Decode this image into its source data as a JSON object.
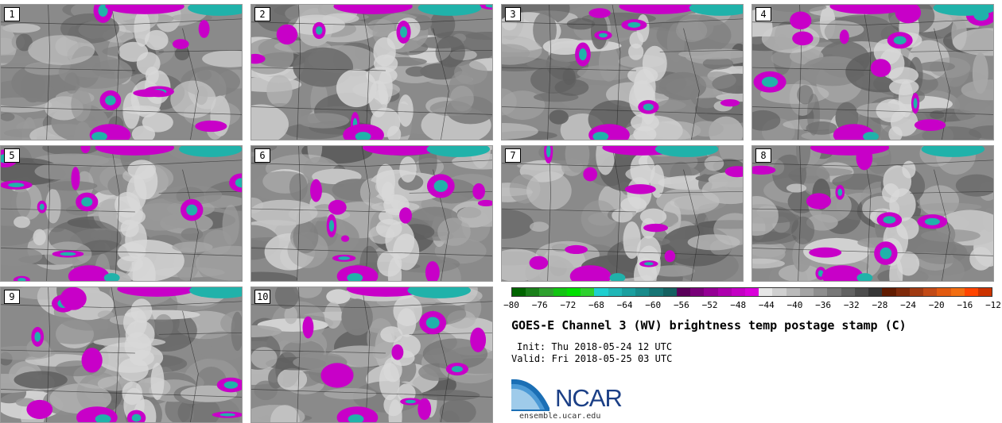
{
  "panels": [
    {
      "label": "1"
    },
    {
      "label": "2"
    },
    {
      "label": "3"
    },
    {
      "label": "4"
    },
    {
      "label": "5"
    },
    {
      "label": "6"
    },
    {
      "label": "7"
    },
    {
      "label": "8"
    },
    {
      "label": "9"
    },
    {
      "label": "10"
    }
  ],
  "colorbar": {
    "colors": [
      "#006400",
      "#1a7f1a",
      "#2ea02e",
      "#12c412",
      "#00e000",
      "#2ed12e",
      "#1ecfcf",
      "#20b6b6",
      "#1a9f9f",
      "#188a8a",
      "#167575",
      "#146060",
      "#5a005a",
      "#780078",
      "#940094",
      "#ae00ae",
      "#c400c4",
      "#da00da",
      "#e6e6e6",
      "#d0d0d0",
      "#bababa",
      "#a4a4a4",
      "#8e8e8e",
      "#787878",
      "#626262",
      "#4c4c4c",
      "#363636",
      "#601b00",
      "#7e2a0a",
      "#a03a12",
      "#c24a16",
      "#e25a10",
      "#f26e12",
      "#ff4500",
      "#cc3300"
    ],
    "tick_labels": [
      "−80",
      "−76",
      "−72",
      "−68",
      "−64",
      "−60",
      "−56",
      "−52",
      "−48",
      "−44",
      "−40",
      "−36",
      "−32",
      "−28",
      "−24",
      "−20",
      "−16",
      "−12"
    ]
  },
  "title": "GOES-E Channel 3 (WV) brightness temp postage stamp (C)",
  "init_text": "Init: Thu 2018-05-24 12 UTC",
  "valid_text": "Valid: Fri 2018-05-25 03 UTC",
  "logo": {
    "text": "NCAR",
    "url": "ensemble.ucar.edu",
    "colors": {
      "arc_blue": "#1b6fb5",
      "text_blue": "#1b3f86"
    }
  }
}
